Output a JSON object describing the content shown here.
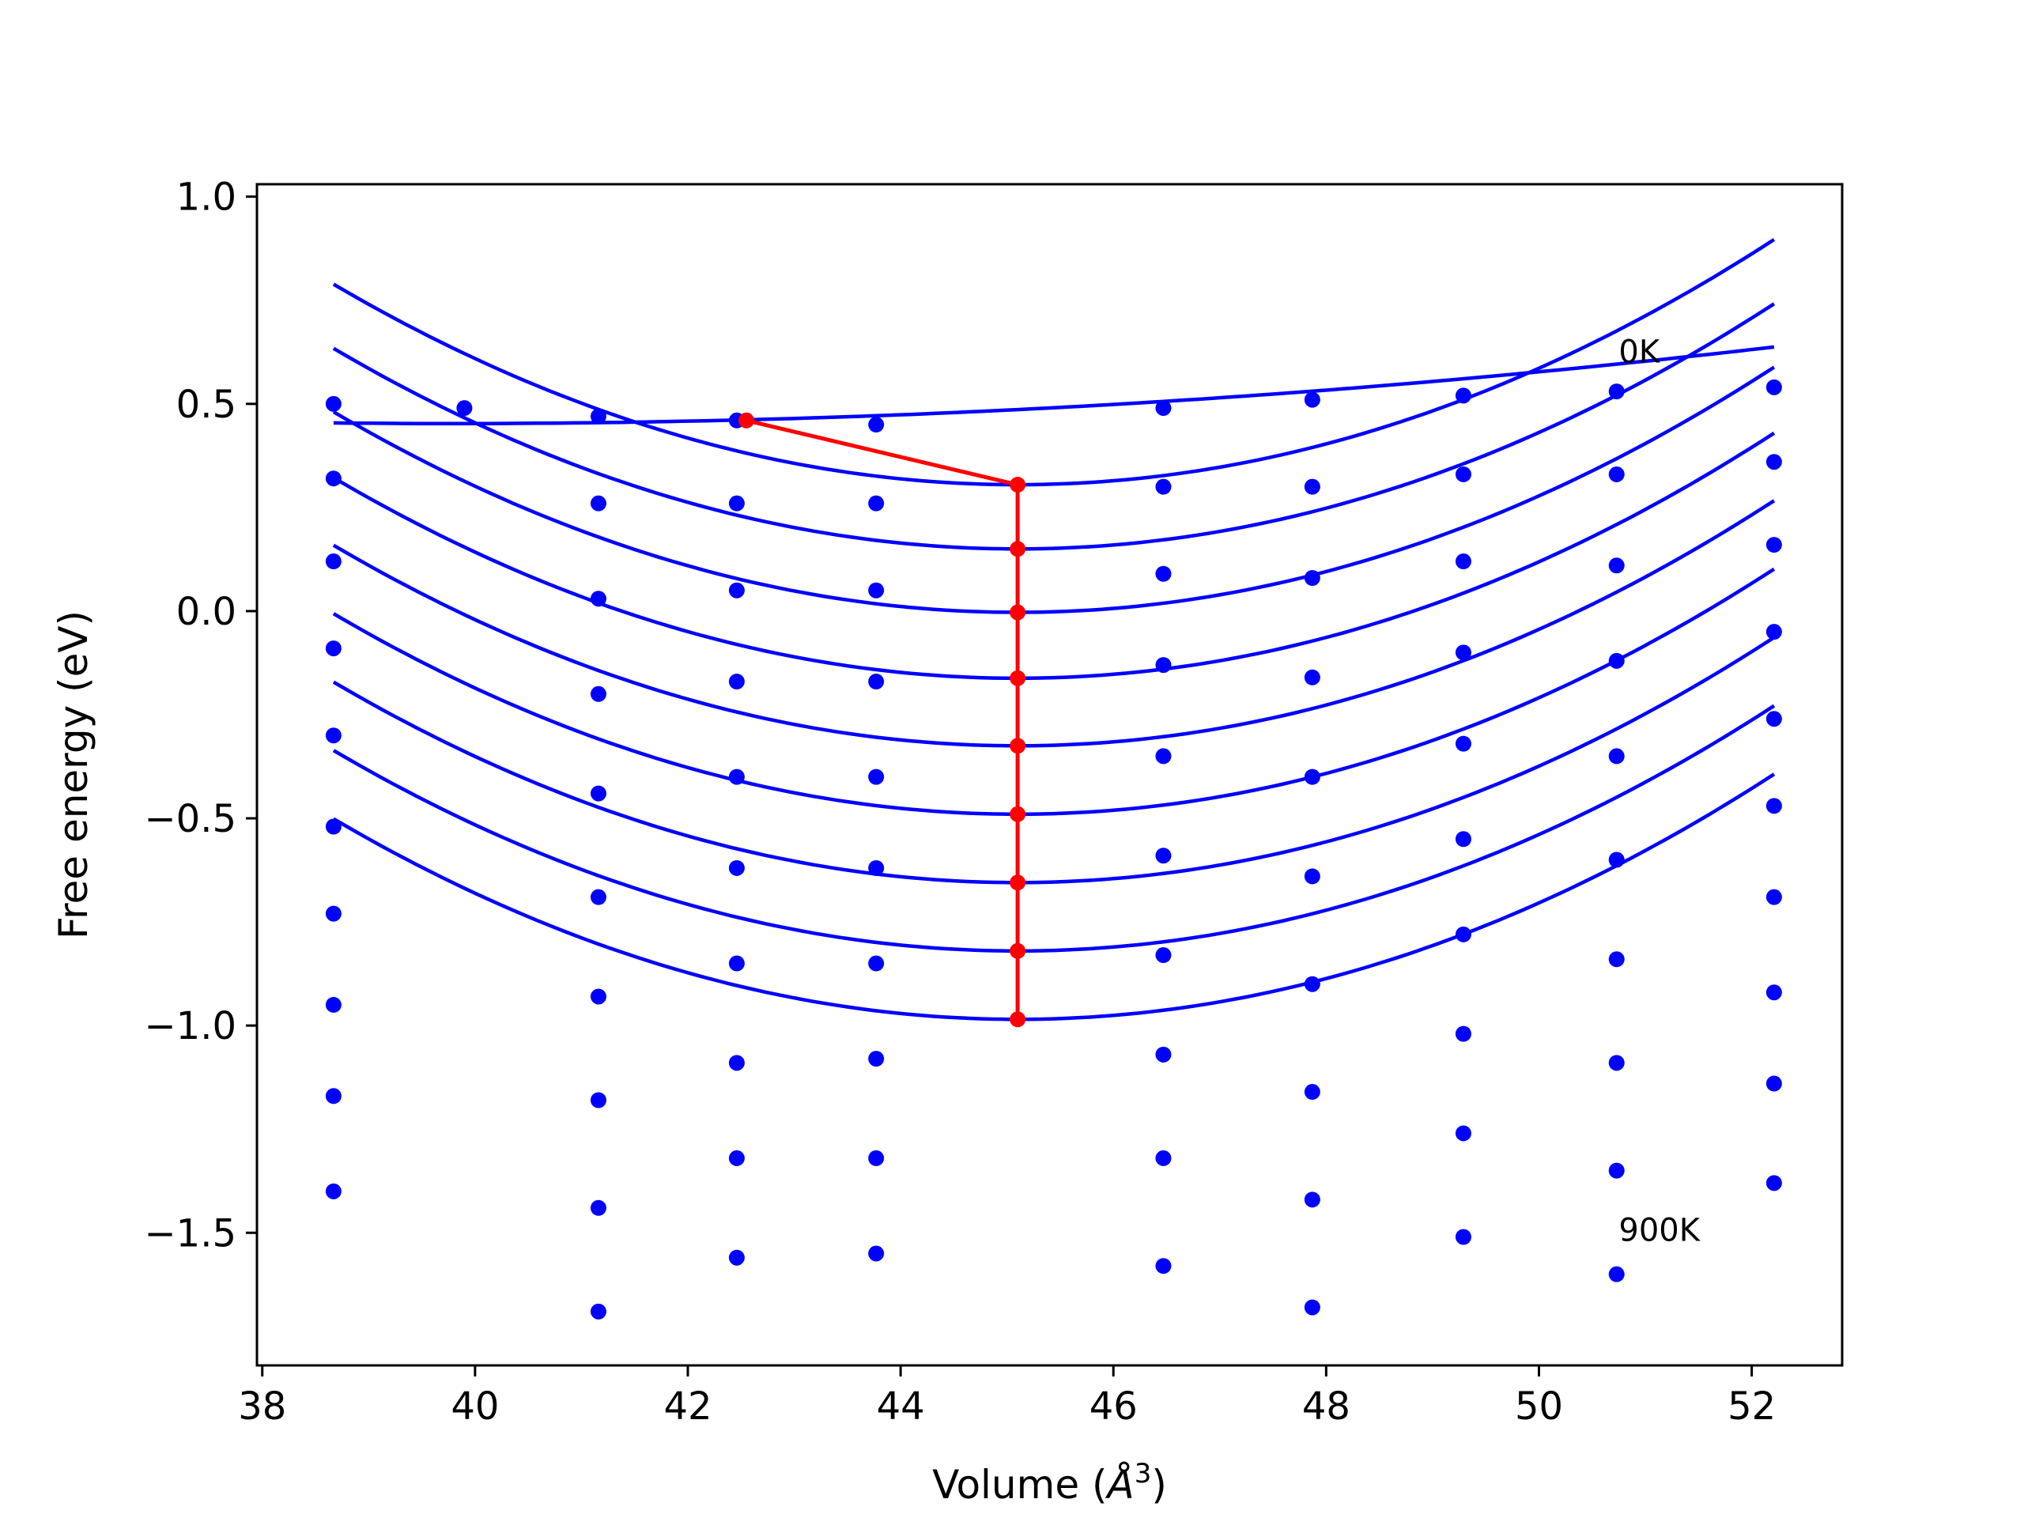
{
  "chart_data": {
    "type": "scatter",
    "title": "",
    "xlabel": "Volume (",
    "xlabel_unit": "Å",
    "xlabel_sup": "3",
    "xlabel_close": ")",
    "ylabel": "Free energy (eV)",
    "xlim": [
      37.95,
      52.85
    ],
    "ylim": [
      -1.82,
      1.03
    ],
    "xticks": [
      38,
      40,
      42,
      44,
      46,
      48,
      50,
      52
    ],
    "xtick_labels": [
      "38",
      "40",
      "42",
      "44",
      "46",
      "48",
      "50",
      "52"
    ],
    "yticks": [
      1.0,
      0.5,
      0.0,
      -0.5,
      -1.0,
      -1.5
    ],
    "ytick_labels": [
      "1.0",
      "0.5",
      "0.0",
      "−0.5",
      "−1.0",
      "−1.5"
    ],
    "grid": false,
    "legend": "none",
    "colors": {
      "points": "#0000ff",
      "fits": "#0000ff",
      "path": "#ff0000"
    },
    "x": [
      38.67,
      39.9,
      41.16,
      42.46,
      43.77,
      46.47,
      47.87,
      49.29,
      50.73,
      52.21
    ],
    "point_series": [
      [
        0.5,
        0.49,
        0.47,
        0.46,
        0.45,
        0.49,
        0.51,
        0.52,
        0.53,
        0.54
      ],
      [
        0.32,
        null,
        0.26,
        0.26,
        0.26,
        0.3,
        0.3,
        0.33,
        0.33,
        0.36
      ],
      [
        0.12,
        null,
        0.03,
        0.05,
        0.05,
        0.09,
        0.08,
        0.12,
        0.11,
        0.16
      ],
      [
        -0.09,
        null,
        -0.2,
        -0.17,
        -0.17,
        -0.13,
        -0.16,
        -0.1,
        -0.12,
        -0.05
      ],
      [
        -0.3,
        null,
        -0.44,
        -0.4,
        -0.4,
        -0.35,
        -0.4,
        -0.32,
        -0.35,
        -0.26
      ],
      [
        -0.52,
        null,
        -0.69,
        -0.62,
        -0.62,
        -0.59,
        -0.64,
        -0.55,
        -0.6,
        -0.47
      ],
      [
        -0.73,
        null,
        -0.93,
        -0.85,
        -0.85,
        -0.83,
        -0.9,
        -0.78,
        -0.84,
        -0.69
      ],
      [
        -0.95,
        null,
        -1.18,
        -1.09,
        -1.08,
        -1.07,
        -1.16,
        -1.02,
        -1.09,
        -0.92
      ],
      [
        -1.17,
        null,
        -1.44,
        -1.32,
        -1.32,
        -1.32,
        -1.42,
        -1.26,
        -1.35,
        -1.14
      ],
      [
        -1.4,
        null,
        -1.69,
        -1.56,
        -1.55,
        -1.58,
        -1.68,
        -1.51,
        -1.6,
        -1.38
      ]
    ],
    "fit_curves": [
      {
        "v0": 42.3,
        "e0": 0.46,
        "c": 0.0012,
        "slope": 0.006,
        "x_range": [
          38.67,
          52.21
        ]
      },
      {
        "v0": 45.1,
        "e0": 0.305,
        "c": 0.0117,
        "x_range": [
          38.67,
          52.21
        ]
      },
      {
        "v0": 45.1,
        "e0": 0.15,
        "c": 0.0117,
        "x_range": [
          38.67,
          52.21
        ]
      },
      {
        "v0": 45.1,
        "e0": -0.003,
        "c": 0.0117,
        "x_range": [
          38.67,
          52.21
        ]
      },
      {
        "v0": 45.1,
        "e0": -0.162,
        "c": 0.0117,
        "x_range": [
          38.67,
          52.21
        ]
      },
      {
        "v0": 45.1,
        "e0": -0.325,
        "c": 0.0117,
        "x_range": [
          38.67,
          52.21
        ]
      },
      {
        "v0": 45.1,
        "e0": -0.49,
        "c": 0.0117,
        "x_range": [
          38.67,
          52.21
        ]
      },
      {
        "v0": 45.1,
        "e0": -0.655,
        "c": 0.0117,
        "x_range": [
          38.67,
          52.21
        ]
      },
      {
        "v0": 45.1,
        "e0": -0.82,
        "c": 0.0117,
        "x_range": [
          38.67,
          52.21
        ]
      },
      {
        "v0": 45.1,
        "e0": -0.985,
        "c": 0.0117,
        "x_range": [
          38.67,
          52.21
        ]
      }
    ],
    "minima_path": {
      "x": [
        42.55,
        45.1,
        45.1,
        45.1,
        45.1,
        45.1,
        45.1,
        45.1,
        45.1,
        45.1
      ],
      "y": [
        0.46,
        0.305,
        0.15,
        -0.003,
        -0.162,
        -0.325,
        -0.49,
        -0.655,
        -0.82,
        -0.985
      ]
    },
    "annotations": [
      {
        "text": "0K",
        "x": 50.75,
        "y": 0.6
      },
      {
        "text": "900K",
        "x": 50.75,
        "y": -1.52
      }
    ]
  }
}
